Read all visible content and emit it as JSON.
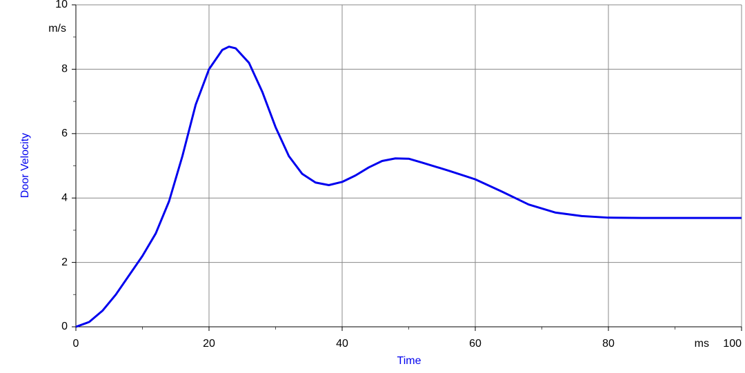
{
  "chart_data": {
    "type": "line",
    "x_label": "Time",
    "y_label": "Door Velocity",
    "x_unit": "ms",
    "y_unit": "m/s",
    "xlim": [
      0,
      100
    ],
    "ylim": [
      0,
      10
    ],
    "xticks": [
      0,
      20,
      40,
      60,
      80,
      100
    ],
    "yticks": [
      0,
      2,
      4,
      6,
      8,
      10
    ],
    "xminorticks": [
      10,
      30,
      50,
      70,
      90
    ],
    "yminorticks": [
      1,
      3,
      5,
      7,
      9
    ],
    "grid": true,
    "x": [
      0,
      2,
      4,
      6,
      8,
      10,
      12,
      14,
      16,
      18,
      20,
      22,
      23,
      24,
      26,
      28,
      30,
      32,
      34,
      36,
      38,
      40,
      42,
      44,
      46,
      48,
      50,
      52,
      56,
      60,
      64,
      68,
      72,
      76,
      80,
      85,
      90,
      100
    ],
    "series": [
      {
        "color": "#0000ee",
        "values": [
          0,
          0.15,
          0.5,
          1.0,
          1.6,
          2.2,
          2.9,
          3.9,
          5.3,
          6.9,
          8.0,
          8.6,
          8.7,
          8.65,
          8.2,
          7.3,
          6.2,
          5.3,
          4.75,
          4.48,
          4.4,
          4.5,
          4.7,
          4.95,
          5.15,
          5.23,
          5.22,
          5.1,
          4.85,
          4.58,
          4.2,
          3.8,
          3.55,
          3.44,
          3.39,
          3.38,
          3.38,
          3.38
        ]
      }
    ]
  }
}
